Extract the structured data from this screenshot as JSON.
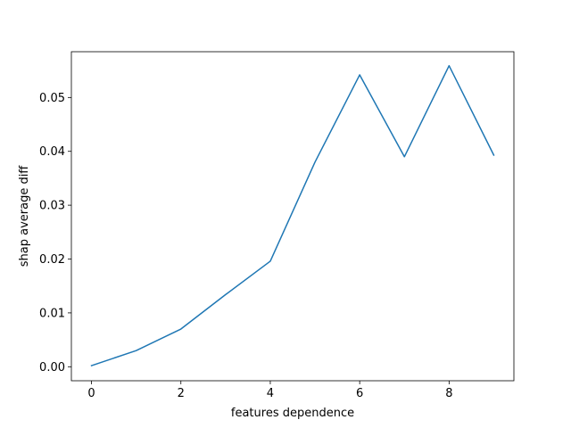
{
  "chart_data": {
    "type": "line",
    "title": "",
    "xlabel": "features dependence",
    "ylabel": "shap average diff",
    "xlim": [
      -0.45,
      9.45
    ],
    "ylim": [
      -0.0026,
      0.0585
    ],
    "xticks": [
      0,
      2,
      4,
      6,
      8
    ],
    "xtick_labels": [
      "0",
      "2",
      "4",
      "6",
      "8"
    ],
    "yticks": [
      0.0,
      0.01,
      0.02,
      0.03,
      0.04,
      0.05
    ],
    "ytick_labels": [
      "0.00",
      "0.01",
      "0.02",
      "0.03",
      "0.04",
      "0.05"
    ],
    "grid": false,
    "legend": null,
    "series": [
      {
        "color": "#1f77b4",
        "x": [
          0,
          1,
          2,
          3,
          4,
          5,
          6,
          7,
          8,
          9
        ],
        "y": [
          0.0002,
          0.003,
          0.007,
          0.0134,
          0.0196,
          0.038,
          0.0542,
          0.039,
          0.0559,
          0.0393
        ]
      }
    ]
  }
}
